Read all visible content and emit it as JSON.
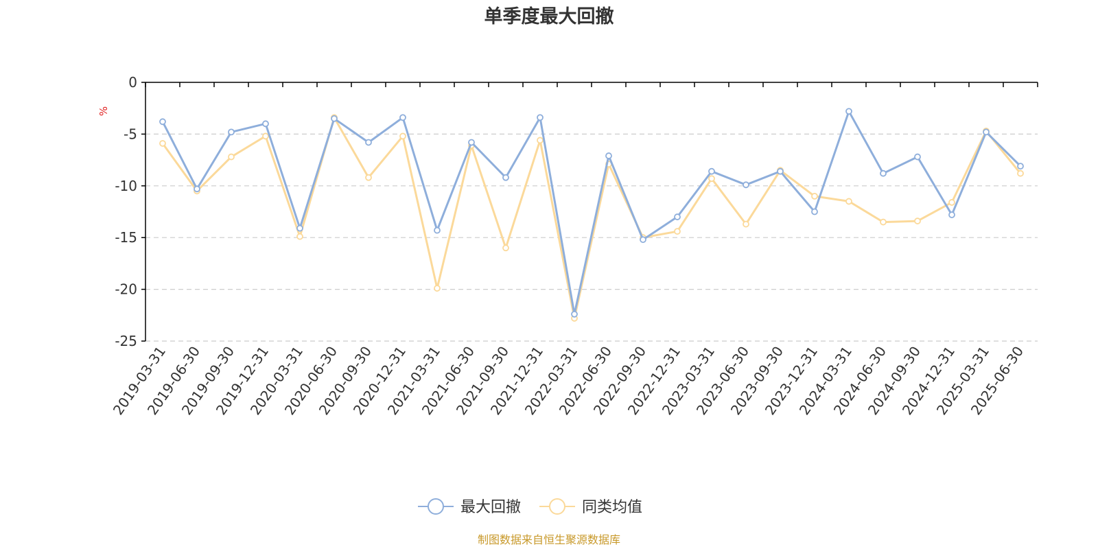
{
  "chart_data": {
    "type": "line",
    "title": "单季度最大回撤",
    "ylabel": "%",
    "ylim": [
      -25,
      0
    ],
    "yticks": [
      0,
      -5,
      -10,
      -15,
      -20,
      -25
    ],
    "grid": true,
    "legend_position": "bottom",
    "categories": [
      "2019-03-31",
      "2019-06-30",
      "2019-09-30",
      "2019-12-31",
      "2020-03-31",
      "2020-06-30",
      "2020-09-30",
      "2020-12-31",
      "2021-03-31",
      "2021-06-30",
      "2021-09-30",
      "2021-12-31",
      "2022-03-31",
      "2022-06-30",
      "2022-09-30",
      "2022-12-31",
      "2023-03-31",
      "2023-06-30",
      "2023-09-30",
      "2023-12-31",
      "2024-03-31",
      "2024-06-30",
      "2024-09-30",
      "2024-12-31",
      "2025-03-31",
      "2025-06-30"
    ],
    "series": [
      {
        "name": "最大回撤",
        "color": "#8eaedb",
        "values": [
          -3.8,
          -10.3,
          -4.8,
          -4.0,
          -14.1,
          -3.5,
          -5.8,
          -3.4,
          -14.3,
          -5.8,
          -9.2,
          -3.4,
          -22.4,
          -7.1,
          -15.2,
          -13.0,
          -8.6,
          -9.9,
          -8.6,
          -12.5,
          -2.8,
          -8.8,
          -7.2,
          -12.8,
          -4.8,
          -8.1
        ]
      },
      {
        "name": "同类均值",
        "color": "#fbd99a",
        "values": [
          -5.9,
          -10.5,
          -7.2,
          -5.2,
          -14.9,
          -3.4,
          -9.2,
          -5.2,
          -19.9,
          -6.1,
          -16.0,
          -5.6,
          -22.8,
          -7.9,
          -15.0,
          -14.4,
          -9.3,
          -13.7,
          -8.5,
          -11.0,
          -11.5,
          -13.5,
          -13.4,
          -11.6,
          -4.7,
          -8.8
        ]
      }
    ]
  },
  "source": "制图数据来自恒生聚源数据库",
  "colors": {
    "unit": "#e02020",
    "source": "#c8992a",
    "axis": "#000000",
    "grid": "#cccccc"
  }
}
